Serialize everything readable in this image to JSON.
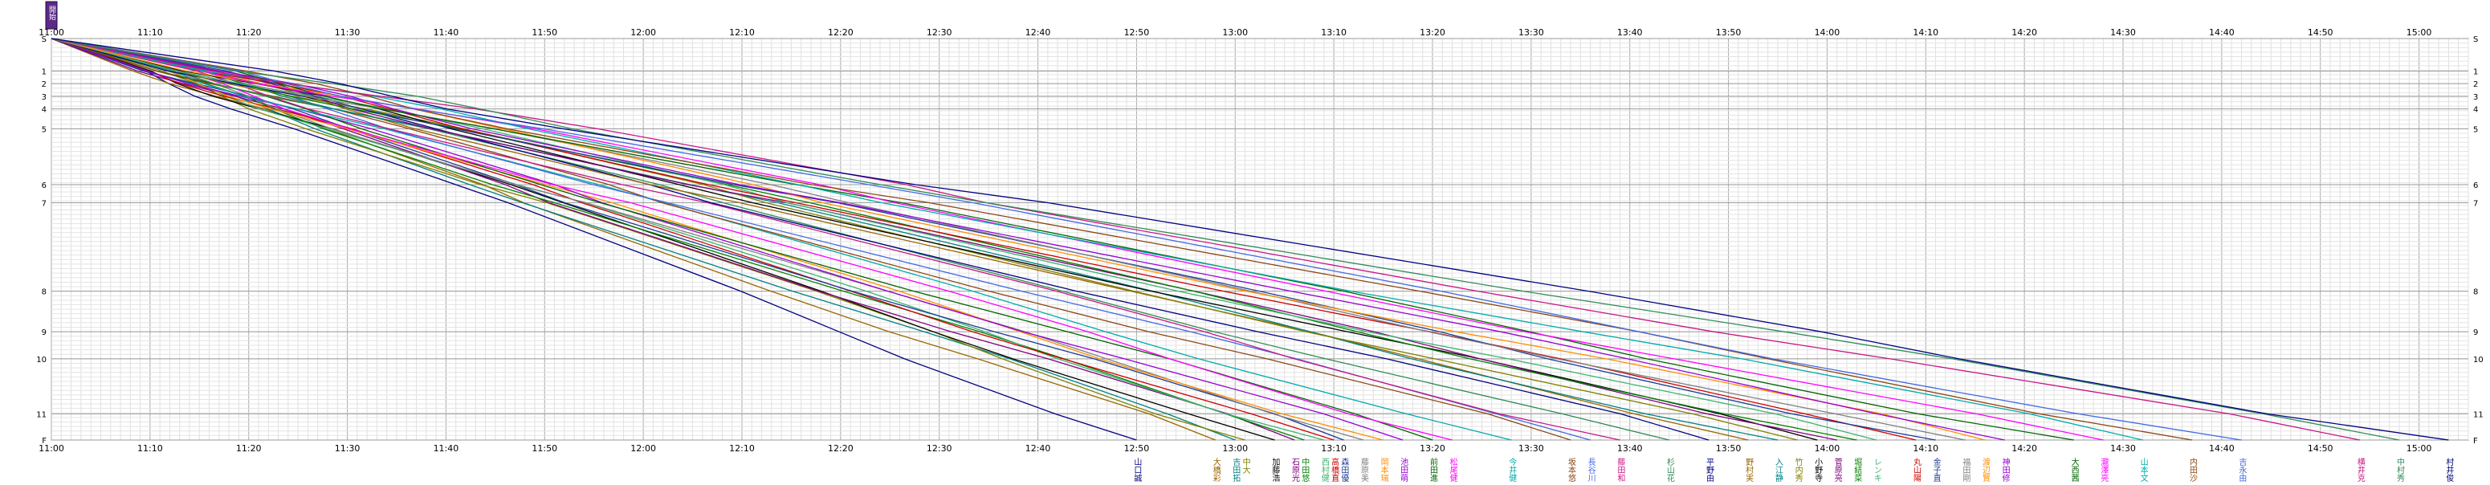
{
  "chart_data": {
    "type": "line",
    "title": "",
    "xlabel": "",
    "ylabel": "",
    "grid": true,
    "x_range": [
      "11:00",
      "15:05"
    ],
    "x_tick_labels": [
      "11:00",
      "11:10",
      "11:20",
      "11:30",
      "11:40",
      "11:50",
      "12:00",
      "12:10",
      "12:20",
      "12:30",
      "12:40",
      "12:50",
      "13:00",
      "13:10",
      "13:20",
      "13:30",
      "13:40",
      "13:50",
      "14:00",
      "14:10",
      "14:20",
      "14:30",
      "14:40",
      "14:50",
      "15:00"
    ],
    "y_levels": [
      "S",
      "1",
      "2",
      "3",
      "4",
      "5",
      "6",
      "7",
      "8",
      "9",
      "10",
      "11",
      "F"
    ],
    "y_level_km": [
      0,
      3.6,
      5.0,
      6.4,
      7.8,
      10.0,
      16.2,
      18.2,
      28.0,
      32.5,
      35.5,
      41.6,
      44.5
    ],
    "start_marker_label": "開始",
    "series_colors": [
      "#000080",
      "#996600",
      "#008080",
      "#808000",
      "#000000",
      "#800080",
      "#008000",
      "#3cb371",
      "#cc0000",
      "#1e3c96",
      "#808080",
      "#ff8c00",
      "#9400d3",
      "#006400",
      "#ff00ff",
      "#00aaaa",
      "#8b4513",
      "#4169e1",
      "#c71585",
      "#2e8b57"
    ],
    "series": [
      {
        "name": "山口誠",
        "start": "11:00",
        "finish": "12:50"
      },
      {
        "name": "大橋彩",
        "start": "11:00",
        "finish": "12:58"
      },
      {
        "name": "吉田拓",
        "start": "11:00",
        "finish": "13:00"
      },
      {
        "name": "中大",
        "start": "11:00",
        "finish": "13:01"
      },
      {
        "name": "加藤浩",
        "start": "11:00",
        "finish": "13:04"
      },
      {
        "name": "石原光",
        "start": "11:00",
        "finish": "13:06"
      },
      {
        "name": "中田悠",
        "start": "11:00",
        "finish": "13:07"
      },
      {
        "name": "西村健",
        "start": "11:00",
        "finish": "13:09"
      },
      {
        "name": "高橋直",
        "start": "11:00",
        "finish": "13:10"
      },
      {
        "name": "森田優",
        "start": "11:00",
        "finish": "13:11"
      },
      {
        "name": "藤原美",
        "start": "11:00",
        "finish": "13:13"
      },
      {
        "name": "岡本瑞",
        "start": "11:00",
        "finish": "13:15"
      },
      {
        "name": "池田萌",
        "start": "11:00",
        "finish": "13:17"
      },
      {
        "name": "前田進",
        "start": "11:00",
        "finish": "13:20"
      },
      {
        "name": "松尾健",
        "start": "11:00",
        "finish": "13:22"
      },
      {
        "name": "今井健",
        "start": "11:00",
        "finish": "13:28"
      },
      {
        "name": "坂本悠",
        "start": "11:00",
        "finish": "13:34"
      },
      {
        "name": "長谷川寛",
        "start": "11:00",
        "finish": "13:36"
      },
      {
        "name": "藤田和",
        "start": "11:00",
        "finish": "13:39"
      },
      {
        "name": "杉山花",
        "start": "11:00",
        "finish": "13:44"
      },
      {
        "name": "平野由",
        "start": "11:00",
        "finish": "13:48"
      },
      {
        "name": "野村実",
        "start": "11:00",
        "finish": "13:52"
      },
      {
        "name": "入江静",
        "start": "11:00",
        "finish": "13:55"
      },
      {
        "name": "竹内秀",
        "start": "11:00",
        "finish": "13:57"
      },
      {
        "name": "小野寺",
        "start": "11:00",
        "finish": "13:59"
      },
      {
        "name": "菅原亮",
        "start": "11:00",
        "finish": "14:01"
      },
      {
        "name": "堀結菜",
        "start": "11:00",
        "finish": "14:03"
      },
      {
        "name": "レンキ",
        "start": "11:00",
        "finish": "14:05"
      },
      {
        "name": "丸山陽",
        "start": "11:00",
        "finish": "14:09"
      },
      {
        "name": "金子直",
        "start": "11:00",
        "finish": "14:11"
      },
      {
        "name": "福田剛",
        "start": "11:00",
        "finish": "14:14"
      },
      {
        "name": "渡辺賢",
        "start": "11:00",
        "finish": "14:16"
      },
      {
        "name": "神田修",
        "start": "11:00",
        "finish": "14:18"
      },
      {
        "name": "大西茜",
        "start": "11:00",
        "finish": "14:25"
      },
      {
        "name": "瀧澤亮",
        "start": "11:00",
        "finish": "14:28"
      },
      {
        "name": "山本文",
        "start": "11:00",
        "finish": "14:32"
      },
      {
        "name": "内田沙",
        "start": "11:00",
        "finish": "14:37"
      },
      {
        "name": "吉永由",
        "start": "11:00",
        "finish": "14:42"
      },
      {
        "name": "横井克",
        "start": "11:00",
        "finish": "14:54"
      },
      {
        "name": "中村秀",
        "start": "11:00",
        "finish": "14:58"
      },
      {
        "name": "村井俊",
        "start": "11:00",
        "finish": "15:03"
      }
    ]
  }
}
